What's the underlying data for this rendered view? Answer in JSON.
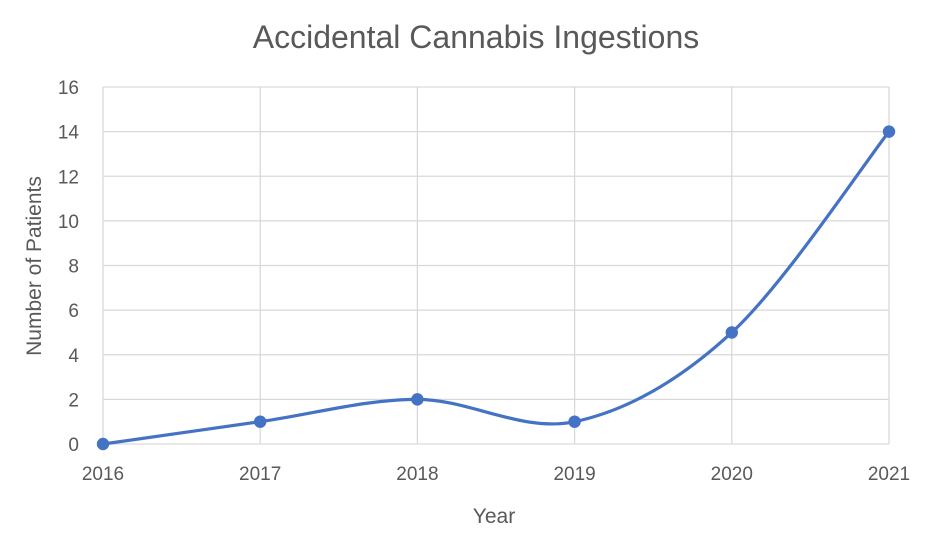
{
  "chart_data": {
    "type": "line",
    "title": "Accidental Cannabis Ingestions",
    "xlabel": "Year",
    "ylabel": "Number of Patients",
    "categories": [
      "2016",
      "2017",
      "2018",
      "2019",
      "2020",
      "2021"
    ],
    "series": [
      {
        "values": [
          0,
          1,
          2,
          1,
          5,
          14
        ],
        "color": "#4472c4"
      }
    ],
    "ylim": [
      0,
      16
    ],
    "yticks": [
      "0",
      "2",
      "4",
      "6",
      "8",
      "10",
      "12",
      "14",
      "16"
    ],
    "smoothed": true,
    "markers": true,
    "grid": true,
    "legend": "none"
  }
}
